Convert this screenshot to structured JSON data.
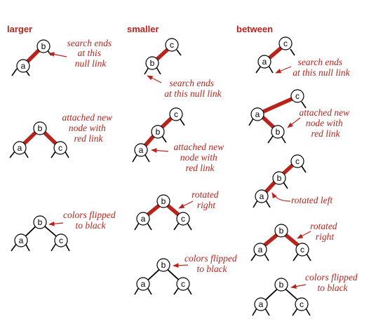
{
  "headers": {
    "larger": "larger",
    "smaller": "smaller",
    "between": "between"
  },
  "annotations": {
    "larger_1": [
      "search ends",
      "at this",
      "null link"
    ],
    "larger_2": [
      "attached new",
      "node with",
      "red link"
    ],
    "larger_3": [
      "colors flipped",
      "to black"
    ],
    "smaller_1": [
      "search ends",
      "at this null link"
    ],
    "smaller_2": [
      "attached new",
      "node with",
      "red link"
    ],
    "smaller_3": [
      "rotated",
      "right"
    ],
    "smaller_4": [
      "colors flipped",
      "to black"
    ],
    "between_1": [
      "search ends",
      "at this null link"
    ],
    "between_2": [
      "attached new",
      "node with",
      "red link"
    ],
    "between_3": [
      "rotated left"
    ],
    "between_4": [
      "rotated",
      "right"
    ],
    "between_5": [
      "colors flipped",
      "to black"
    ]
  },
  "keys": {
    "a": "a",
    "b": "b",
    "c": "c"
  },
  "colors": {
    "red_link": "#b8241c",
    "annotation": "#b8241c",
    "black_link": "#000000"
  }
}
